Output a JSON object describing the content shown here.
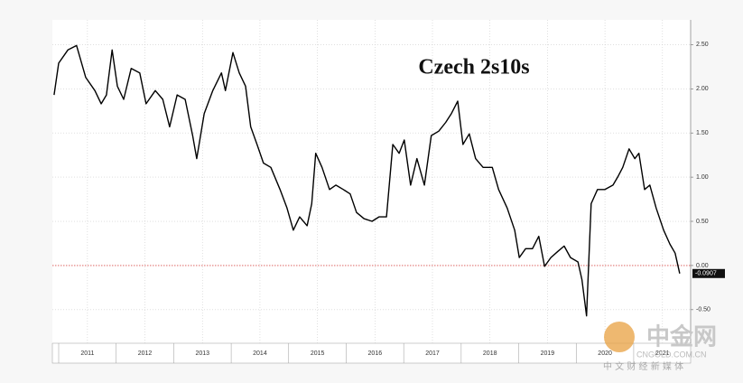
{
  "chart_data": {
    "type": "line",
    "title": "Czech 2s10s",
    "x": [
      2010.92,
      2011.0,
      2011.16,
      2011.31,
      2011.47,
      2011.63,
      2011.74,
      2011.83,
      2011.93,
      2012.02,
      2012.13,
      2012.26,
      2012.41,
      2012.52,
      2012.68,
      2012.81,
      2012.93,
      2013.06,
      2013.2,
      2013.33,
      2013.4,
      2013.53,
      2013.68,
      2013.83,
      2013.9,
      2014.03,
      2014.14,
      2014.25,
      2014.34,
      2014.45,
      2014.56,
      2014.69,
      2014.85,
      2014.97,
      2015.08,
      2015.19,
      2015.32,
      2015.4,
      2015.47,
      2015.58,
      2015.71,
      2015.82,
      2015.95,
      2016.07,
      2016.18,
      2016.31,
      2016.45,
      2016.57,
      2016.7,
      2016.81,
      2016.92,
      2017.01,
      2017.12,
      2017.23,
      2017.36,
      2017.48,
      2017.61,
      2017.73,
      2017.83,
      2017.94,
      2018.03,
      2018.14,
      2018.25,
      2018.38,
      2018.54,
      2018.65,
      2018.8,
      2018.93,
      2019.01,
      2019.12,
      2019.24,
      2019.35,
      2019.45,
      2019.56,
      2019.68,
      2019.79,
      2019.9,
      2020.03,
      2020.1,
      2020.18,
      2020.26,
      2020.37,
      2020.5,
      2020.64,
      2020.73,
      2020.81,
      2020.92,
      2021.02,
      2021.09,
      2021.19,
      2021.28,
      2021.39,
      2021.52,
      2021.63,
      2021.72,
      2021.8
    ],
    "series": [
      {
        "name": "Czech 2s10s",
        "color": "#000000",
        "values": [
          1.93,
          2.29,
          2.44,
          2.49,
          2.13,
          1.98,
          1.83,
          1.93,
          2.44,
          2.03,
          1.88,
          2.23,
          2.18,
          1.83,
          1.98,
          1.88,
          1.57,
          1.93,
          1.88,
          1.47,
          1.21,
          1.72,
          1.98,
          2.18,
          1.98,
          2.41,
          2.18,
          2.03,
          1.57,
          1.37,
          1.16,
          1.11,
          0.86,
          0.65,
          0.4,
          0.55,
          0.45,
          0.7,
          1.27,
          1.11,
          0.86,
          0.91,
          0.86,
          0.81,
          0.6,
          0.53,
          0.5,
          0.55,
          0.55,
          1.37,
          1.27,
          1.42,
          0.91,
          1.21,
          0.91,
          1.47,
          1.52,
          1.62,
          1.72,
          1.86,
          1.37,
          1.49,
          1.21,
          1.11,
          1.11,
          0.86,
          0.65,
          0.4,
          0.09,
          0.19,
          0.19,
          0.33,
          -0.01,
          0.09,
          0.16,
          0.22,
          0.09,
          0.04,
          -0.16,
          -0.57,
          0.7,
          0.86,
          0.86,
          0.91,
          1.01,
          1.11,
          1.32,
          1.21,
          1.27,
          0.86,
          0.91,
          0.65,
          0.4,
          0.24,
          0.14,
          -0.0907
        ]
      }
    ],
    "xlim": [
      2010.89,
      2021.99
    ],
    "xticks": [
      {
        "value": 2011.5,
        "label": "2011"
      },
      {
        "value": 2012.5,
        "label": "2012"
      },
      {
        "value": 2013.5,
        "label": "2013"
      },
      {
        "value": 2014.5,
        "label": "2014"
      },
      {
        "value": 2015.5,
        "label": "2015"
      },
      {
        "value": 2016.5,
        "label": "2016"
      },
      {
        "value": 2017.5,
        "label": "2017"
      },
      {
        "value": 2018.5,
        "label": "2018"
      },
      {
        "value": 2019.5,
        "label": "2019"
      },
      {
        "value": 2020.5,
        "label": "2020"
      },
      {
        "value": 2021.5,
        "label": "2021"
      }
    ],
    "ylim": [
      -0.88,
      2.78
    ],
    "yticks": [
      {
        "value": -0.5,
        "label": "-0.50"
      },
      {
        "value": 0,
        "label": "0.00"
      },
      {
        "value": 0.5,
        "label": "0.50"
      },
      {
        "value": 1,
        "label": "1.00"
      },
      {
        "value": 1.5,
        "label": "1.50"
      },
      {
        "value": 2,
        "label": "2.00"
      },
      {
        "value": 2.5,
        "label": "2.50"
      }
    ],
    "reference_line": 0,
    "reference_color": "#d9534f",
    "grid": true
  },
  "watermark": {
    "name": "中金网",
    "url": "CNGOLD.COM.CN",
    "tagline": "中 文 财 经 新 媒 体"
  }
}
